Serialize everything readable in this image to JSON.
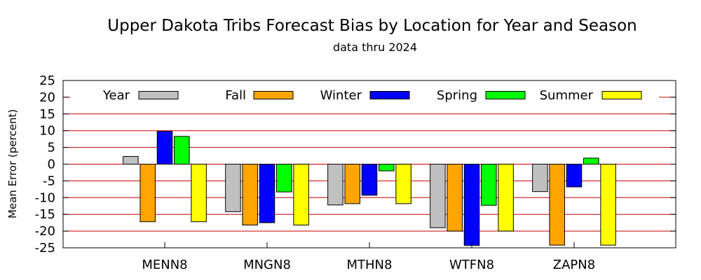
{
  "chart_data": {
    "type": "bar",
    "title": "Upper Dakota Tribs Forecast Bias by Location for Year and Season",
    "subtitle": "data thru 2024",
    "xlabel": "",
    "ylabel": "Mean Error (percent)",
    "ylim": [
      -25,
      25
    ],
    "yticks": [
      "-25",
      "-20",
      "-15",
      "-10",
      "-5",
      "0",
      "5",
      "10",
      "15",
      "20",
      "25"
    ],
    "grid": true,
    "legend_position": "top",
    "categories": [
      "MENN8",
      "MNGN8",
      "MTHN8",
      "WTFN8",
      "ZAPN8"
    ],
    "series": [
      {
        "name": "Year",
        "color": "#c0c0c0",
        "values": [
          2.3,
          -14.2,
          -12.2,
          -19.0,
          -8.2
        ]
      },
      {
        "name": "Fall",
        "color": "#ffa500",
        "values": [
          -17.2,
          -18.2,
          -11.8,
          -20.0,
          -24.2
        ]
      },
      {
        "name": "Winter",
        "color": "#0000ff",
        "values": [
          9.8,
          -17.5,
          -9.3,
          -24.3,
          -6.8
        ]
      },
      {
        "name": "Spring",
        "color": "#00ff00",
        "values": [
          8.3,
          -8.3,
          -2.0,
          -12.3,
          1.8
        ]
      },
      {
        "name": "Summer",
        "color": "#ffff00",
        "values": [
          -17.2,
          -18.2,
          -11.8,
          -20.0,
          -24.2
        ]
      }
    ],
    "gridline_color": "#cc0000"
  }
}
